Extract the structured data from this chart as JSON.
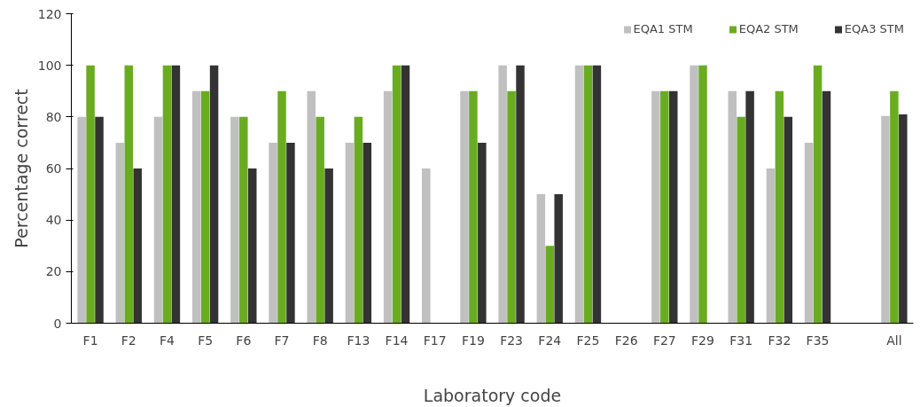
{
  "chart_data": {
    "type": "bar",
    "xlabel": "Laboratory code",
    "ylabel": "Percentage correct",
    "categories": [
      "F1",
      "F2",
      "F4",
      "F5",
      "F6",
      "F7",
      "F8",
      "F13",
      "F14",
      "F17",
      "F19",
      "F23",
      "F24",
      "F25",
      "F26",
      "F27",
      "F29",
      "F31",
      "F32",
      "F35",
      null,
      "All"
    ],
    "series": [
      {
        "name": "EQA1 STM",
        "color": "#c0c0c0",
        "values": [
          80,
          70,
          80,
          90,
          80,
          70,
          90,
          70,
          90,
          60,
          90,
          100,
          50,
          100,
          null,
          90,
          100,
          90,
          60,
          70,
          null,
          80.4
        ]
      },
      {
        "name": "EQA2 STM",
        "color": "#6aac21",
        "values": [
          100,
          100,
          100,
          90,
          80,
          90,
          80,
          80,
          100,
          null,
          90,
          90,
          30,
          100,
          null,
          90,
          100,
          80,
          90,
          100,
          null,
          90
        ]
      },
      {
        "name": "EQA3 STM",
        "color": "#333333",
        "values": [
          80,
          60,
          100,
          100,
          60,
          70,
          60,
          70,
          100,
          null,
          70,
          100,
          50,
          100,
          null,
          90,
          null,
          90,
          80,
          90,
          null,
          81
        ]
      }
    ],
    "ylim": [
      0,
      120
    ],
    "yticks": [
      0,
      20,
      40,
      60,
      80,
      100,
      120
    ],
    "grid": false,
    "legend": "top right"
  }
}
